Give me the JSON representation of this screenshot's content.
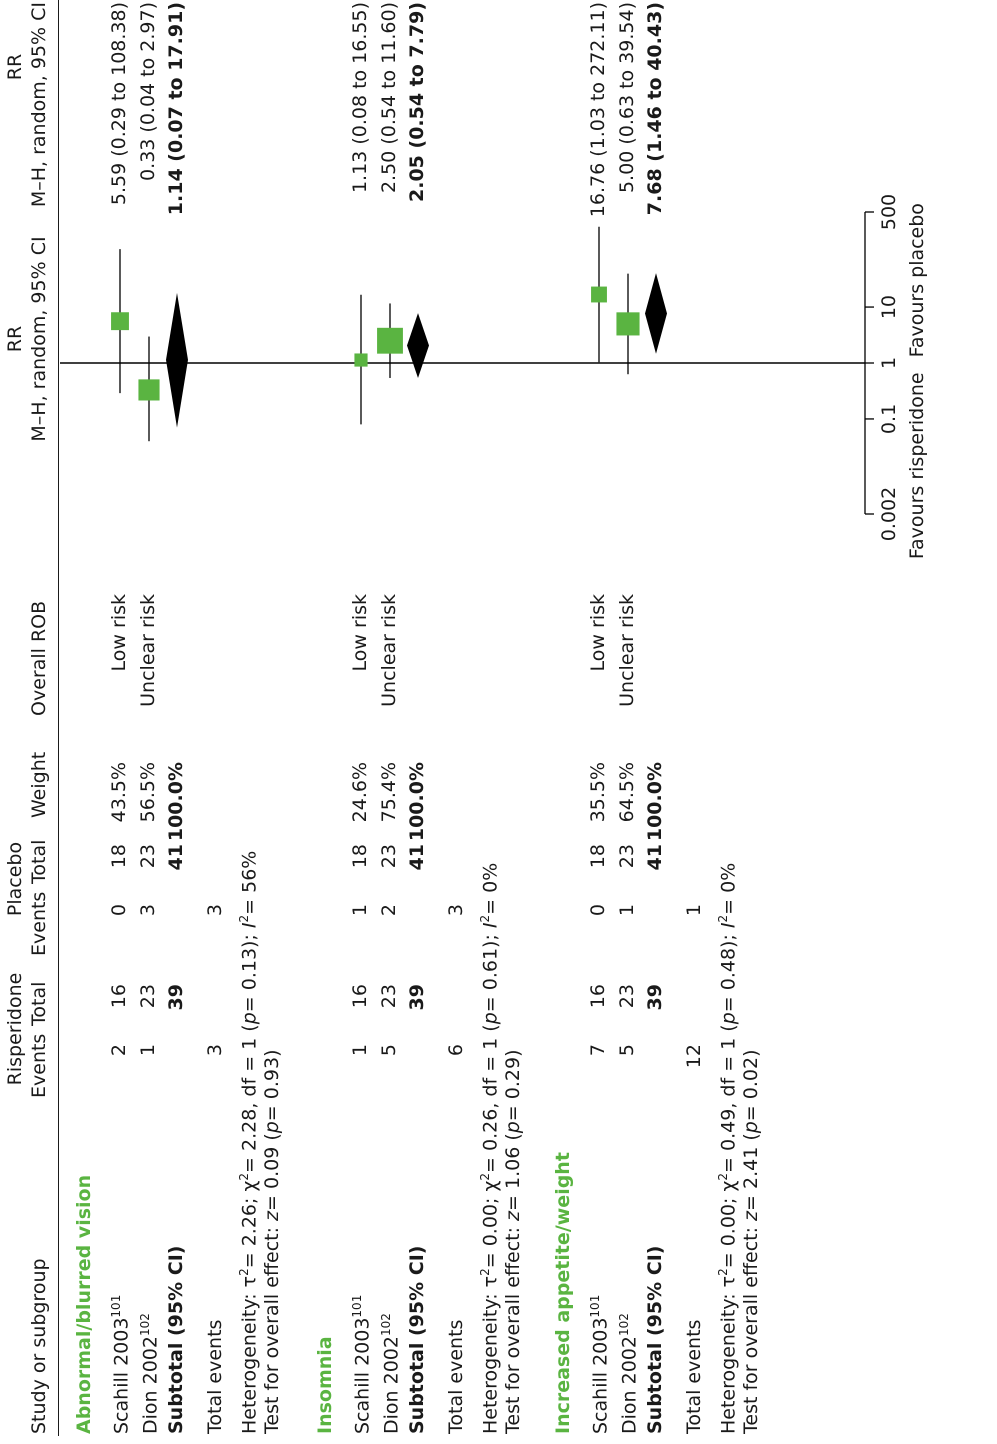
{
  "columns": {
    "study": "Study or subgroup",
    "ris_group": "Risperidone",
    "pla_group": "Placebo",
    "events": "Events",
    "total": "Total",
    "weight": "Weight",
    "rob": "Overall ROB",
    "rr1": "RR",
    "rr2": "M–H, random, 95% CI"
  },
  "subgroups": [
    {
      "name": "Abnormal/blurred vision",
      "studies": [
        {
          "study": "Scahill 2003",
          "ref": "101",
          "ris_e": "2",
          "ris_t": "16",
          "pla_e": "0",
          "pla_t": "18",
          "weight": "43.5%",
          "rob": "Low risk",
          "ci": "5.59 (0.29 to 108.38)"
        },
        {
          "study": "Dion 2002",
          "ref": "102",
          "ris_e": "1",
          "ris_t": "23",
          "pla_e": "3",
          "pla_t": "23",
          "weight": "56.5%",
          "rob": "Unclear risk",
          "ci": "0.33 (0.04 to 2.97)"
        }
      ],
      "subtotal": {
        "label": "Subtotal (95% CI)",
        "ris_t": "39",
        "pla_t": "41",
        "weight": "100.0%",
        "ci": "1.14 (0.07 to 17.91)"
      },
      "total_events": {
        "label": "Total events",
        "ris": "3",
        "pla": "3"
      },
      "heterogeneity": {
        "p1": "Heterogeneity: τ",
        "p2": "= 2.26; χ",
        "p3": "= 2.28, df = 1 (",
        "p4": "p",
        "p5": "= 0.13); ",
        "p6": "I",
        "p7": "= 56%"
      },
      "overall": {
        "p1": "Test for overall effect: ",
        "p2": "z",
        "p3": "= 0.09 (",
        "p4": "p",
        "p5": "= 0.93)"
      }
    },
    {
      "name": "Insomnia",
      "studies": [
        {
          "study": "Scahill 2003",
          "ref": "101",
          "ris_e": "1",
          "ris_t": "16",
          "pla_e": "1",
          "pla_t": "18",
          "weight": "24.6%",
          "rob": "Low risk",
          "ci": "1.13 (0.08 to 16.55)"
        },
        {
          "study": "Dion 2002",
          "ref": "102",
          "ris_e": "5",
          "ris_t": "23",
          "pla_e": "2",
          "pla_t": "23",
          "weight": "75.4%",
          "rob": "Unclear risk",
          "ci": "2.50 (0.54 to 11.60)"
        }
      ],
      "subtotal": {
        "label": "Subtotal (95% CI)",
        "ris_t": "39",
        "pla_t": "41",
        "weight": "100.0%",
        "ci": "2.05 (0.54 to 7.79)"
      },
      "total_events": {
        "label": "Total events",
        "ris": "6",
        "pla": "3"
      },
      "heterogeneity": {
        "p1": "Heterogeneity: τ",
        "p2": "= 0.00; χ",
        "p3": "= 0.26, df = 1 (",
        "p4": "p",
        "p5": "= 0.61); ",
        "p6": "I",
        "p7": "= 0%"
      },
      "overall": {
        "p1": "Test for overall effect: ",
        "p2": "z",
        "p3": "= 1.06 (",
        "p4": "p",
        "p5": "= 0.29)"
      }
    },
    {
      "name": "Increased appetite/weight",
      "studies": [
        {
          "study": "Scahill 2003",
          "ref": "101",
          "ris_e": "7",
          "ris_t": "16",
          "pla_e": "0",
          "pla_t": "18",
          "weight": "35.5%",
          "rob": "Low risk",
          "ci": "16.76 (1.03 to 272.11)"
        },
        {
          "study": "Dion 2002",
          "ref": "102",
          "ris_e": "5",
          "ris_t": "23",
          "pla_e": "1",
          "pla_t": "23",
          "weight": "64.5%",
          "rob": "Unclear risk",
          "ci": "5.00 (0.63 to 39.54)"
        }
      ],
      "subtotal": {
        "label": "Subtotal (95% CI)",
        "ris_t": "39",
        "pla_t": "41",
        "weight": "100.0%",
        "ci": "7.68 (1.46 to 40.43)"
      },
      "total_events": {
        "label": "Total events",
        "ris": "12",
        "pla": "1"
      },
      "heterogeneity": {
        "p1": "Heterogeneity: τ",
        "p2": "= 0.00; χ",
        "p3": "= 0.49, df = 1 (",
        "p4": "p",
        "p5": "= 0.48); ",
        "p6": "I",
        "p7": "= 0%"
      },
      "overall": {
        "p1": "Test for overall effect: ",
        "p2": "z",
        "p3": "= 2.41 (",
        "p4": "p",
        "p5": "= 0.02)"
      }
    }
  ],
  "axis": {
    "ticks": [
      "0.002",
      "0.1",
      "1",
      "10",
      "500"
    ],
    "left_label": "Favours risperidone",
    "right_label": "Favours placebo"
  },
  "colors": {
    "square": "#5ab441",
    "diamond": "#000000",
    "heading": "#5ab441"
  },
  "chart_data": {
    "type": "forest",
    "scale": "log",
    "xlim": [
      0.002,
      500
    ],
    "reference_line": 1,
    "groups": [
      {
        "name": "Abnormal/blurred vision",
        "points": [
          {
            "label": "Scahill 2003",
            "rr": 5.59,
            "lo": 0.29,
            "hi": 108.38,
            "weight": 43.5
          },
          {
            "label": "Dion 2002",
            "rr": 0.33,
            "lo": 0.04,
            "hi": 2.97,
            "weight": 56.5
          }
        ],
        "pooled": {
          "rr": 1.14,
          "lo": 0.07,
          "hi": 17.91
        }
      },
      {
        "name": "Insomnia",
        "points": [
          {
            "label": "Scahill 2003",
            "rr": 1.13,
            "lo": 0.08,
            "hi": 16.55,
            "weight": 24.6
          },
          {
            "label": "Dion 2002",
            "rr": 2.5,
            "lo": 0.54,
            "hi": 11.6,
            "weight": 75.4
          }
        ],
        "pooled": {
          "rr": 2.05,
          "lo": 0.54,
          "hi": 7.79
        }
      },
      {
        "name": "Increased appetite/weight",
        "points": [
          {
            "label": "Scahill 2003",
            "rr": 16.76,
            "lo": 1.03,
            "hi": 272.11,
            "weight": 35.5
          },
          {
            "label": "Dion 2002",
            "rr": 5.0,
            "lo": 0.63,
            "hi": 39.54,
            "weight": 64.5
          }
        ],
        "pooled": {
          "rr": 7.68,
          "lo": 1.46,
          "hi": 40.43
        }
      }
    ]
  }
}
